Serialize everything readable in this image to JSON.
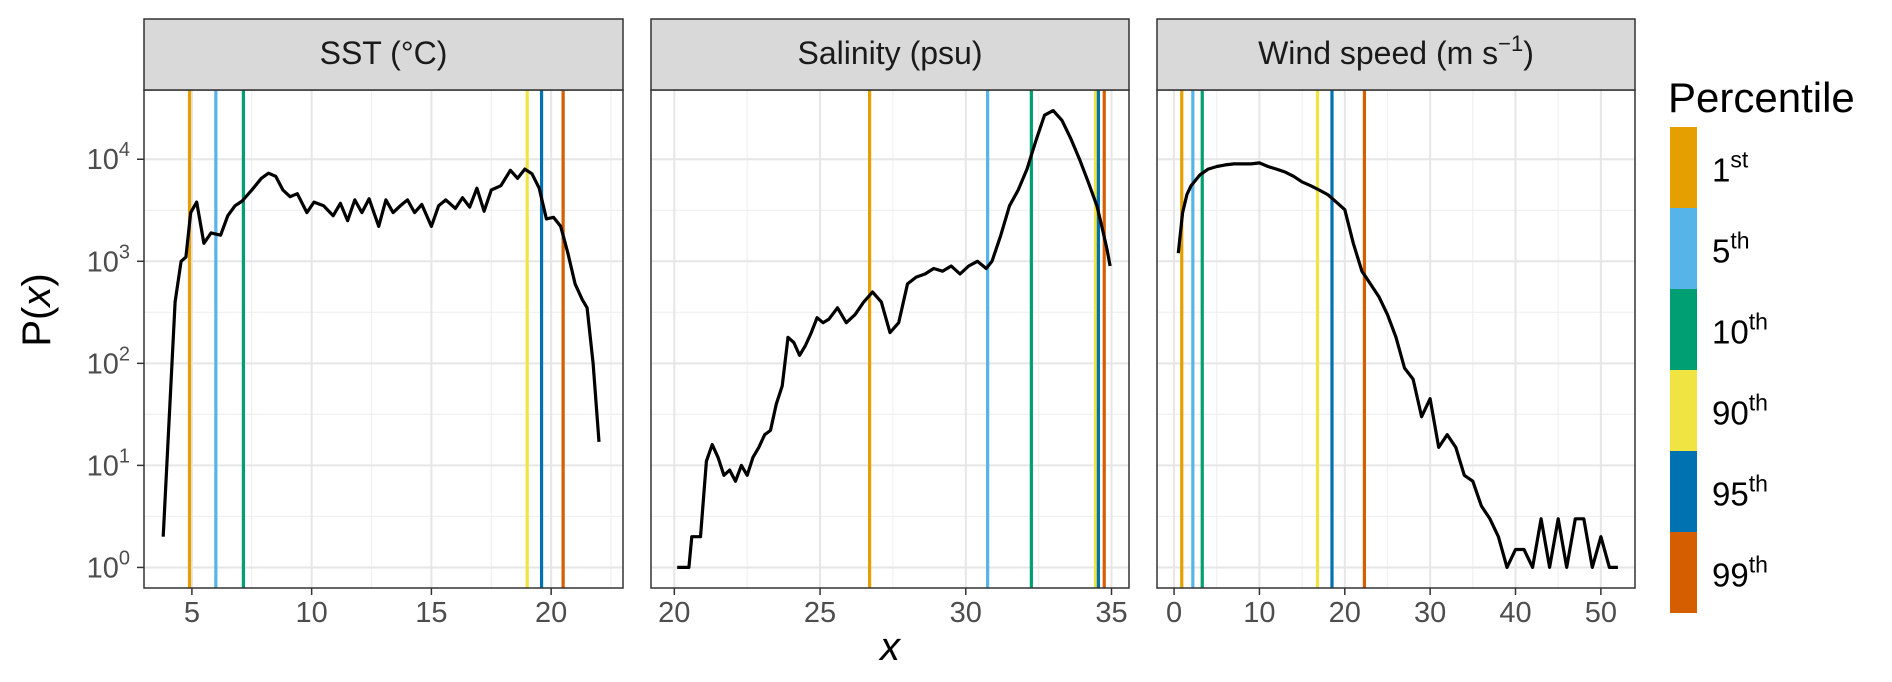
{
  "chart_data": {
    "type": "line",
    "ylabel": "P(x)",
    "xlabel": "x",
    "y_scale": "log10",
    "ylim": [
      1,
      30000
    ],
    "y_ticks": [
      1,
      10,
      100,
      1000,
      10000
    ],
    "y_tick_labels": [
      {
        "base": "10",
        "exp": "0"
      },
      {
        "base": "10",
        "exp": "1"
      },
      {
        "base": "10",
        "exp": "2"
      },
      {
        "base": "10",
        "exp": "3"
      },
      {
        "base": "10",
        "exp": "4"
      }
    ],
    "grid": true,
    "legend": {
      "title": "Percentile",
      "placement": "right",
      "items": [
        {
          "label": "1",
          "sup": "st",
          "color": "#E69F00"
        },
        {
          "label": "5",
          "sup": "th",
          "color": "#56B4E9"
        },
        {
          "label": "10",
          "sup": "th",
          "color": "#009E73"
        },
        {
          "label": "90",
          "sup": "th",
          "color": "#F0E442"
        },
        {
          "label": "95",
          "sup": "th",
          "color": "#0072B2"
        },
        {
          "label": "99",
          "sup": "th",
          "color": "#D55E00"
        }
      ]
    },
    "panels": [
      {
        "title": "SST (°C)",
        "xlim": [
          3.0,
          23.0
        ],
        "x_ticks": [
          5,
          10,
          15,
          20
        ],
        "percentile_lines": [
          4.9,
          6.0,
          7.15,
          19.0,
          19.6,
          20.5
        ],
        "series": {
          "x": [
            3.8,
            4.3,
            4.55,
            4.75,
            4.95,
            5.2,
            5.5,
            5.8,
            6.2,
            6.5,
            6.8,
            7.1,
            7.5,
            7.9,
            8.2,
            8.5,
            8.8,
            9.1,
            9.4,
            9.8,
            10.1,
            10.5,
            10.9,
            11.2,
            11.5,
            11.8,
            12.1,
            12.4,
            12.8,
            13.1,
            13.4,
            13.7,
            14.0,
            14.3,
            14.6,
            15.0,
            15.3,
            15.6,
            16.0,
            16.3,
            16.6,
            16.9,
            17.2,
            17.5,
            17.9,
            18.3,
            18.6,
            18.9,
            19.2,
            19.5,
            19.8,
            20.1,
            20.4,
            20.7,
            21.0,
            21.3,
            21.5,
            21.75,
            22.0
          ],
          "y": [
            2,
            400,
            1000,
            1100,
            3000,
            3800,
            1500,
            1900,
            1800,
            2800,
            3500,
            3900,
            5000,
            6500,
            7300,
            6800,
            5000,
            4300,
            4600,
            3000,
            3800,
            3500,
            2800,
            3700,
            2500,
            4000,
            3000,
            4100,
            2200,
            4000,
            3000,
            3500,
            4000,
            3000,
            3600,
            2200,
            3500,
            4000,
            3300,
            4200,
            3400,
            5200,
            3100,
            5000,
            5500,
            7800,
            6500,
            8000,
            7200,
            5200,
            2600,
            2700,
            2200,
            1200,
            600,
            420,
            350,
            100,
            17
          ]
        }
      },
      {
        "title": "Salinity (psu)",
        "xlim": [
          19.2,
          35.6
        ],
        "x_ticks": [
          20,
          25,
          30,
          35
        ],
        "percentile_lines": [
          26.7,
          30.75,
          32.25,
          34.45,
          34.55,
          34.75
        ],
        "series": {
          "x": [
            20.1,
            20.5,
            20.6,
            20.9,
            21.1,
            21.3,
            21.5,
            21.7,
            21.9,
            22.1,
            22.3,
            22.5,
            22.7,
            22.9,
            23.1,
            23.3,
            23.5,
            23.7,
            23.9,
            24.1,
            24.3,
            24.5,
            24.7,
            24.9,
            25.1,
            25.3,
            25.6,
            25.9,
            26.2,
            26.5,
            26.8,
            27.1,
            27.4,
            27.7,
            28.0,
            28.3,
            28.6,
            28.9,
            29.2,
            29.5,
            29.8,
            30.1,
            30.4,
            30.7,
            30.9,
            31.2,
            31.5,
            31.8,
            32.1,
            32.4,
            32.7,
            33.0,
            33.3,
            33.6,
            33.9,
            34.2,
            34.5,
            34.7,
            34.85,
            34.95
          ],
          "y": [
            1,
            1,
            2,
            2,
            11,
            16,
            12,
            8,
            9,
            7,
            10,
            8,
            12,
            15,
            20,
            22,
            40,
            60,
            180,
            160,
            120,
            150,
            200,
            280,
            250,
            270,
            350,
            250,
            300,
            400,
            500,
            400,
            200,
            250,
            600,
            700,
            750,
            850,
            800,
            900,
            750,
            900,
            1000,
            850,
            1000,
            1800,
            3500,
            5000,
            8000,
            15000,
            27000,
            30000,
            24000,
            16000,
            10000,
            6000,
            3500,
            2000,
            1300,
            900
          ]
        }
      },
      {
        "title": "Wind speed (m s⁻¹)",
        "title_parts": {
          "main": "Wind speed (m s",
          "sup": "−1",
          "end": ")"
        },
        "xlim": [
          -2.0,
          54.0
        ],
        "x_ticks": [
          0,
          10,
          20,
          30,
          40,
          50
        ],
        "percentile_lines": [
          0.9,
          2.2,
          3.3,
          16.8,
          18.5,
          22.3
        ],
        "series": {
          "x": [
            0.5,
            1,
            1.5,
            2,
            3,
            4,
            5,
            6,
            7,
            8,
            9,
            10,
            11,
            12,
            13,
            14,
            15,
            16,
            17,
            18,
            19,
            20,
            21,
            22,
            23,
            24,
            25,
            26,
            27,
            28,
            29,
            30,
            31,
            32,
            33,
            34,
            35,
            36,
            37,
            38,
            39,
            40,
            41,
            42,
            43,
            44,
            45,
            46,
            47,
            48,
            49,
            50,
            51,
            52
          ],
          "y": [
            1200,
            3000,
            4500,
            5500,
            7000,
            8000,
            8500,
            8800,
            9000,
            9000,
            9000,
            9200,
            8500,
            8000,
            7500,
            6800,
            6000,
            5500,
            5000,
            4500,
            3800,
            3200,
            1500,
            800,
            600,
            450,
            300,
            180,
            90,
            70,
            30,
            45,
            15,
            20,
            15,
            8,
            7,
            4,
            3,
            2,
            1,
            1.5,
            1.5,
            1,
            3,
            1,
            3,
            1,
            3,
            3,
            1,
            2,
            1,
            1
          ]
        }
      }
    ]
  }
}
